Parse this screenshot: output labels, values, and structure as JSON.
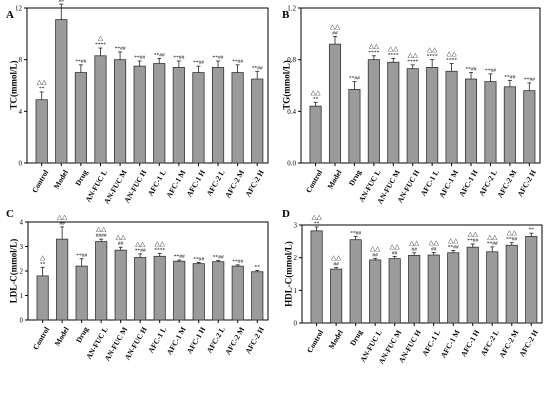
{
  "chart_data": [
    {
      "panel": "A",
      "type": "bar",
      "ylabel": "TC(mmol/L)",
      "ylim": [
        0,
        12
      ],
      "yticks": [
        "0",
        "4",
        "8",
        "12"
      ],
      "categories": [
        "Control",
        "Model",
        "Drug",
        "AN-FUC L",
        "AN-FUC M",
        "AN-FUC H",
        "AFC-1 L",
        "AFC-1 M",
        "AFC-1 H",
        "AFC-2 L",
        "AFC-2 M",
        "AFC-2 H"
      ],
      "values": [
        4.9,
        11.1,
        7.0,
        8.3,
        8.0,
        7.5,
        7.7,
        7.4,
        7.0,
        7.4,
        7.0,
        6.5
      ],
      "errors": [
        0.6,
        1.2,
        0.6,
        0.6,
        0.6,
        0.4,
        0.4,
        0.5,
        0.5,
        0.5,
        0.6,
        0.6
      ],
      "top_marks": [
        "△△",
        "△△",
        "",
        "△",
        "",
        "",
        "",
        "",
        "",
        "",
        "",
        ""
      ],
      "bottom_marks": [
        "**",
        "##",
        "**##",
        "****",
        "**##",
        "**##",
        "**##",
        "**##",
        "**##",
        "**##",
        "**##",
        "**##"
      ]
    },
    {
      "panel": "B",
      "type": "bar",
      "ylabel": "TG(mmol/L)",
      "ylim": [
        0,
        1.2
      ],
      "yticks": [
        "0.0",
        "0.4",
        "0.8",
        "1.2"
      ],
      "categories": [
        "Control",
        "Model",
        "Drug",
        "AN-FUC L",
        "AN-FUC M",
        "AN-FUC H",
        "AFC-1 L",
        "AFC-1 M",
        "AFC-1 H",
        "AFC-2 L",
        "AFC-2 M",
        "AFC-2 H"
      ],
      "values": [
        0.44,
        0.92,
        0.57,
        0.8,
        0.78,
        0.73,
        0.74,
        0.71,
        0.65,
        0.63,
        0.59,
        0.56
      ],
      "errors": [
        0.03,
        0.06,
        0.06,
        0.03,
        0.03,
        0.03,
        0.06,
        0.06,
        0.05,
        0.06,
        0.05,
        0.06
      ],
      "top_marks": [
        "△△",
        "△△",
        "",
        "△△",
        "△△",
        "△△",
        "△△",
        "△△",
        "",
        "",
        "",
        ""
      ],
      "bottom_marks": [
        "**",
        "##",
        "**##",
        "****",
        "****",
        "****",
        "****",
        "****",
        "**##",
        "**##",
        "**##",
        "**##"
      ]
    },
    {
      "panel": "C",
      "type": "bar",
      "ylabel": "LDL-C(mmol/L)",
      "ylim": [
        0,
        4
      ],
      "yticks": [
        "0",
        "1",
        "2",
        "3",
        "4"
      ],
      "categories": [
        "Control",
        "Model",
        "Drug",
        "AN-FUC L",
        "AN-FUC M",
        "AN-FUC H",
        "AFC-1 L",
        "AFC-1 M",
        "AFC-1 H",
        "AFC-2 L",
        "AFC-2 M",
        "AFC-2 H"
      ],
      "values": [
        1.8,
        3.3,
        2.2,
        3.2,
        2.85,
        2.55,
        2.6,
        2.4,
        2.3,
        2.38,
        2.2,
        1.97
      ],
      "errors": [
        0.35,
        0.5,
        0.3,
        0.1,
        0.12,
        0.15,
        0.12,
        0.05,
        0.05,
        0.05,
        0.05,
        0.05
      ],
      "top_marks": [
        "△",
        "△△",
        "",
        "△△",
        "△△",
        "△△",
        "△△",
        "",
        "",
        "",
        "",
        ""
      ],
      "bottom_marks": [
        "**",
        "##",
        "**##",
        "####",
        "##",
        "**##",
        "****",
        "**##",
        "**##",
        "**##",
        "**##",
        "**"
      ]
    },
    {
      "panel": "D",
      "type": "bar",
      "ylabel": "HDL-C(mmol/L)",
      "ylim": [
        0,
        3
      ],
      "yticks": [
        "0",
        "1",
        "2",
        "3"
      ],
      "categories": [
        "Control",
        "Model",
        "Drug",
        "AN-FUC L",
        "AN-FUC M",
        "AN-FUC H",
        "AFC-1 L",
        "AFC-1 M",
        "AFC-1 H",
        "AFC-2 L",
        "AFC-2 M",
        "AFC-2 H"
      ],
      "values": [
        2.82,
        1.65,
        2.55,
        1.93,
        1.97,
        2.07,
        2.08,
        2.15,
        2.32,
        2.18,
        2.38,
        2.65
      ],
      "errors": [
        0.12,
        0.05,
        0.1,
        0.05,
        0.07,
        0.08,
        0.08,
        0.07,
        0.1,
        0.15,
        0.08,
        0.1
      ],
      "top_marks": [
        "△△",
        "△△",
        "",
        "△△",
        "△△",
        "△△",
        "△△",
        "△△",
        "△△",
        "△△",
        "△△",
        ""
      ],
      "bottom_marks": [
        "**",
        "##",
        "**##",
        "##",
        "##",
        "##",
        "##",
        "**##",
        "**##",
        "**##",
        "**##",
        "**"
      ]
    }
  ]
}
